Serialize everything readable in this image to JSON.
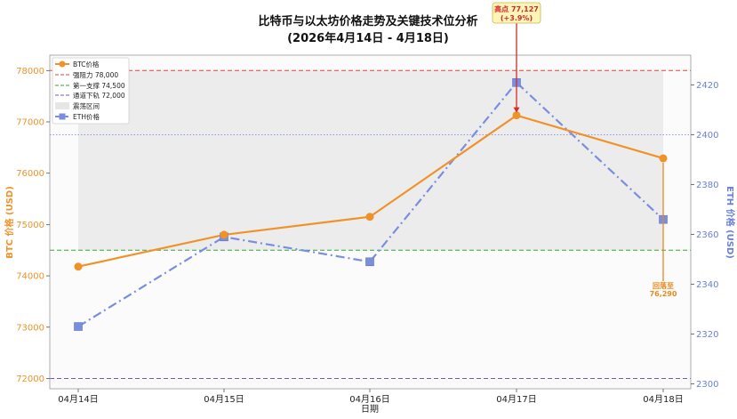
{
  "chart_data": {
    "type": "line",
    "title_line1": "比特币与以太坊价格走势及关键技术位分析",
    "title_line2": "(2026年4月14日 - 4月18日)",
    "xlabel": "日期",
    "ylabel_left": "BTC 价格 (USD)",
    "ylabel_right": "ETH 价格 (USD)",
    "categories": [
      "04月14日",
      "04月15日",
      "04月16日",
      "04月17日",
      "04月18日"
    ],
    "ylim_left": [
      71800,
      78300
    ],
    "ylim_right": [
      2298,
      2432
    ],
    "yticks_left": [
      "72000",
      "73000",
      "74000",
      "75000",
      "76000",
      "77000",
      "78000"
    ],
    "yticks_right": [
      "2300",
      "2320",
      "2340",
      "2360",
      "2380",
      "2400",
      "2420"
    ],
    "series": [
      {
        "name": "BTC价格",
        "axis": "left",
        "values": [
          74180,
          74800,
          75150,
          77127,
          76290
        ],
        "color": "#f0922a"
      },
      {
        "name": "ETH价格",
        "axis": "right",
        "values": [
          2323,
          2359,
          2349,
          2421,
          2366
        ],
        "color": "#7b8ede"
      }
    ],
    "reference_lines": [
      {
        "label": "强阻力 78,000",
        "value": 78000,
        "axis": "left",
        "color": "#e0453a"
      },
      {
        "label": "第一支撑 74,500",
        "value": 74500,
        "axis": "left",
        "color": "#3aa33a"
      },
      {
        "label": "通道下轨 72,000",
        "value": 72000,
        "axis": "left",
        "color": "#7a55c0"
      }
    ],
    "eth_reference": {
      "value": 2400,
      "color": "#8f96ee"
    },
    "band": {
      "label": "震荡区间",
      "from": 74500,
      "to": 78000,
      "axis": "left"
    },
    "annotations": {
      "peak": {
        "line1": "高点 77,127",
        "line2": "(+3.9%)",
        "color": "#d62a2a"
      },
      "end": {
        "line1": "回落至",
        "line2": "76,290",
        "color": "#e8891e"
      }
    },
    "legend_position": "top-left",
    "grid": false
  }
}
